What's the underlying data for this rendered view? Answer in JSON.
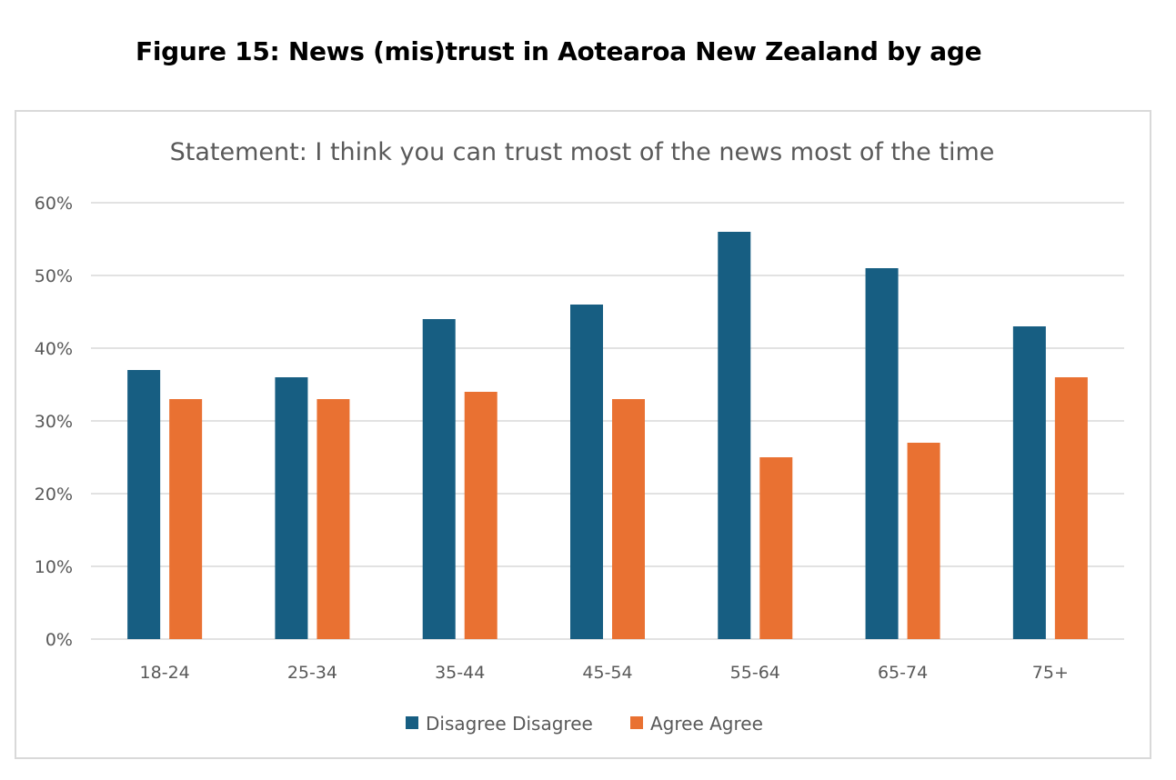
{
  "figure": {
    "caption": "Figure 15: News (mis)trust in Aotearoa New Zealand by age"
  },
  "chart_data": {
    "type": "bar",
    "title": "Statement: I think you can trust most of the news most of the time",
    "xlabel": "",
    "ylabel": "",
    "categories": [
      "18-24",
      "25-34",
      "35-44",
      "45-54",
      "55-64",
      "65-74",
      "75+"
    ],
    "series": [
      {
        "name": "Disagree Disagree",
        "color": "#175e82",
        "values": [
          37,
          36,
          44,
          46,
          56,
          51,
          43
        ]
      },
      {
        "name": "Agree Agree",
        "color": "#e97132",
        "values": [
          33,
          33,
          34,
          33,
          25,
          27,
          36
        ]
      }
    ],
    "ylim": [
      0,
      60
    ],
    "yticks": [
      0,
      10,
      20,
      30,
      40,
      50,
      60
    ],
    "ytick_labels": [
      "0%",
      "10%",
      "20%",
      "30%",
      "40%",
      "50%",
      "60%"
    ],
    "grid": true,
    "legend_position": "bottom",
    "gridline_color": "#d9d9d9"
  }
}
